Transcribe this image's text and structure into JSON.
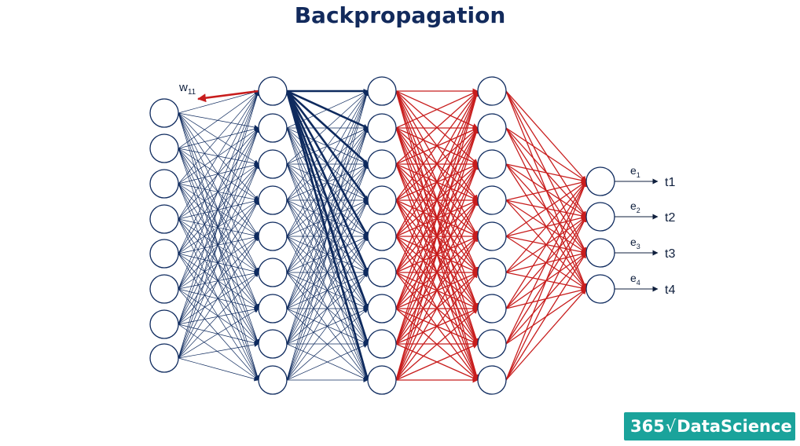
{
  "title": "Backpropagation",
  "weight_label": {
    "base": "w",
    "sub": "11"
  },
  "network": {
    "layers": [
      8,
      9,
      9,
      9,
      4
    ],
    "backprop_colors": [
      "#0e2a5e",
      "#0e2a5e",
      "#c81d1d",
      "#c81d1d"
    ]
  },
  "errors": [
    {
      "e": "e",
      "sub": "1",
      "t": "t1"
    },
    {
      "e": "e",
      "sub": "2",
      "t": "t2"
    },
    {
      "e": "e",
      "sub": "3",
      "t": "t3"
    },
    {
      "e": "e",
      "sub": "4",
      "t": "t4"
    }
  ],
  "brand": {
    "prefix": "365",
    "sqrt": "√",
    "name": "DataScience"
  },
  "colors": {
    "navy": "#0e2a5e",
    "red": "#c81d1d",
    "brand": "#1aa39b"
  }
}
